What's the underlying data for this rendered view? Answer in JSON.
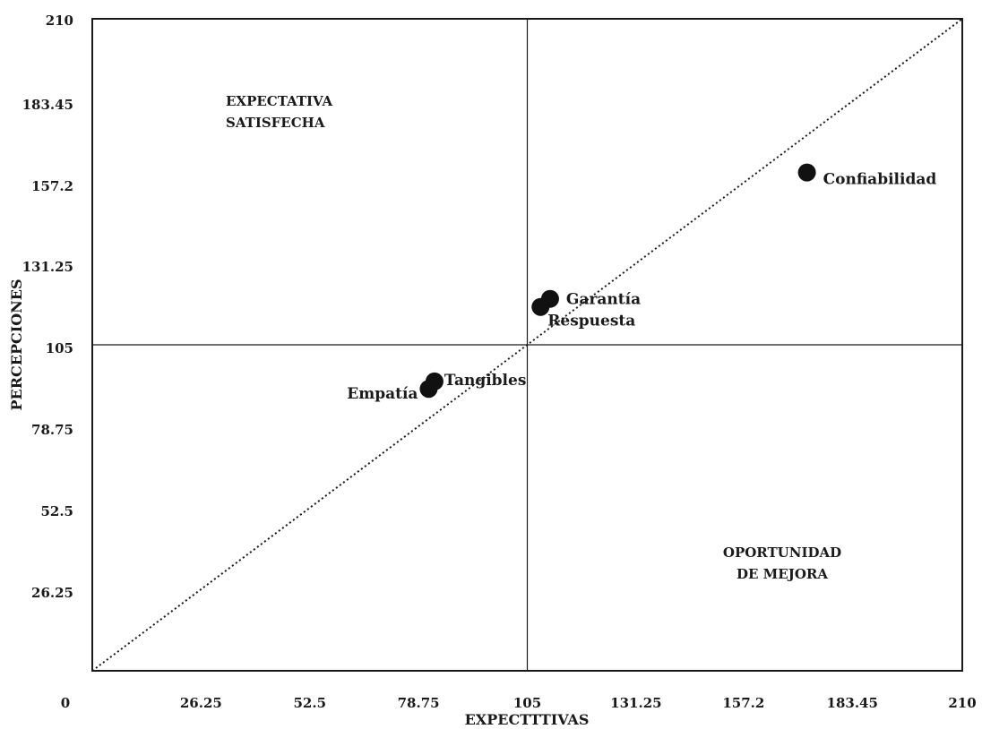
{
  "chart_data": {
    "type": "scatter",
    "title": "",
    "xlabel": "EXPECTTTIVAS",
    "ylabel": "PERCEPCIONES",
    "xlim": [
      0,
      210
    ],
    "ylim": [
      0,
      210
    ],
    "x_ticks": [
      {
        "value": 0,
        "label": "0"
      },
      {
        "value": 26.25,
        "label": "26.25"
      },
      {
        "value": 52.5,
        "label": "52.5"
      },
      {
        "value": 78.75,
        "label": "78.75"
      },
      {
        "value": 105,
        "label": "105"
      },
      {
        "value": 131.25,
        "label": "131.25"
      },
      {
        "value": 157.2,
        "label": "157.2"
      },
      {
        "value": 183.45,
        "label": "183.45"
      },
      {
        "value": 210,
        "label": "210"
      }
    ],
    "y_ticks": [
      {
        "value": 26.25,
        "label": "26.25"
      },
      {
        "value": 52.5,
        "label": "52.5"
      },
      {
        "value": 78.75,
        "label": "78.75"
      },
      {
        "value": 105,
        "label": "105"
      },
      {
        "value": 131.25,
        "label": "131.25"
      },
      {
        "value": 157.2,
        "label": "157.2"
      },
      {
        "value": 183.45,
        "label": "183.45"
      },
      {
        "value": 210,
        "label": "210"
      }
    ],
    "quadrant_lines": {
      "x": 105,
      "y": 105
    },
    "diagonal": {
      "from": [
        0,
        0
      ],
      "to": [
        210,
        210
      ],
      "style": "dotted"
    },
    "quadrant_labels": [
      {
        "lines": [
          "EXPECTATIVA",
          "SATISFECHA"
        ],
        "position": "top-left"
      },
      {
        "lines": [
          "OPORTUNIDAD",
          "DE MEJORA"
        ],
        "position": "bottom-right"
      }
    ],
    "points": [
      {
        "label": "Confiabilidad",
        "x": 172.5,
        "y": 160.5
      },
      {
        "label": "Garantía",
        "x": 110.5,
        "y": 119.8
      },
      {
        "label": "Respuesta",
        "x": 108.2,
        "y": 117.2
      },
      {
        "label": "Tangibles",
        "x": 82.6,
        "y": 93.2
      },
      {
        "label": "Empatía",
        "x": 81.2,
        "y": 90.8
      }
    ],
    "colors": {
      "marker": "#111111",
      "lines": "#1a1a1a"
    },
    "grid": false,
    "legend": "none"
  }
}
